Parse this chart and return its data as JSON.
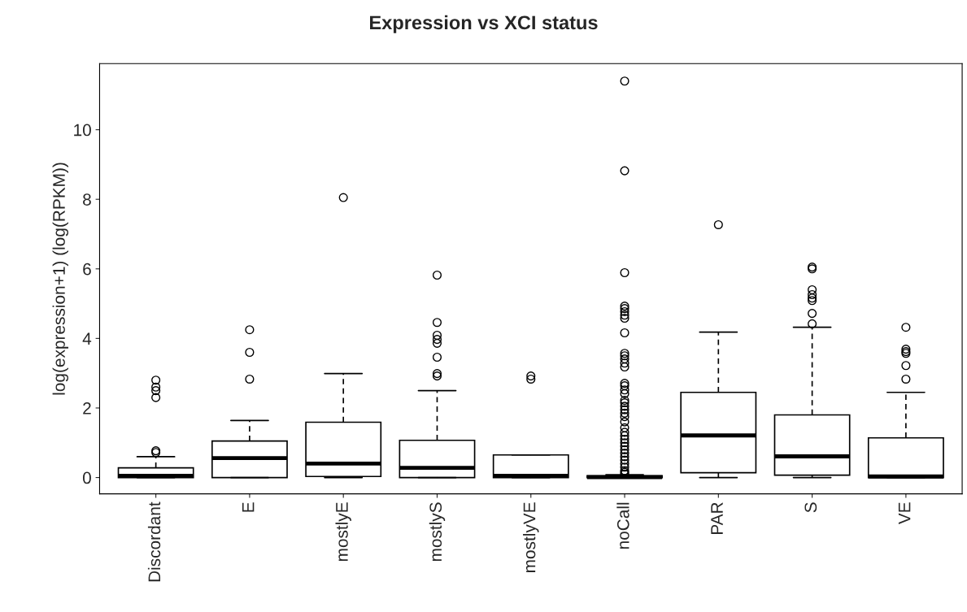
{
  "chart_data": {
    "type": "box",
    "title": "Expression vs XCI status",
    "ylabel": "log(expression+1) (log(RPKM))",
    "categories": [
      "Discordant",
      "E",
      "mostlyE",
      "mostlyS",
      "mostlyVE",
      "noCall",
      "PAR",
      "S",
      "VE"
    ],
    "ylim": [
      -0.47,
      11.9
    ],
    "yticks": [
      0,
      2,
      4,
      6,
      8,
      10
    ],
    "grid": false,
    "legend": false,
    "boxes": [
      {
        "low": 0,
        "q1": 0,
        "median": 0.05,
        "q3": 0.28,
        "high": 0.6,
        "outliers": [
          0.72,
          0.77,
          2.3,
          2.5,
          2.6,
          2.8
        ]
      },
      {
        "low": 0,
        "q1": 0,
        "median": 0.56,
        "q3": 1.05,
        "high": 1.64,
        "outliers": [
          2.83,
          3.6,
          4.25
        ]
      },
      {
        "low": 0,
        "q1": 0.03,
        "median": 0.4,
        "q3": 1.59,
        "high": 2.99,
        "outliers": [
          8.05
        ]
      },
      {
        "low": 0,
        "q1": 0,
        "median": 0.28,
        "q3": 1.07,
        "high": 2.5,
        "outliers": [
          2.92,
          2.99,
          3.46,
          3.86,
          3.97,
          4.09,
          4.46,
          5.82
        ]
      },
      {
        "low": 0,
        "q1": 0,
        "median": 0.05,
        "q3": 0.65,
        "high": 0.65,
        "outliers": [
          2.83,
          2.92
        ]
      },
      {
        "low": 0,
        "q1": 0,
        "median": 0.01,
        "q3": 0.05,
        "high": 0.08,
        "outliers": [
          0.1,
          0.15,
          0.2,
          0.3,
          0.4,
          0.5,
          0.6,
          0.7,
          0.8,
          0.9,
          1.0,
          1.1,
          1.2,
          1.3,
          1.43,
          1.6,
          1.75,
          1.85,
          1.95,
          2.05,
          2.15,
          2.22,
          2.41,
          2.52,
          2.64,
          2.71,
          3.18,
          3.29,
          3.41,
          3.5,
          3.57,
          4.16,
          4.58,
          4.67,
          4.77,
          4.86,
          4.93,
          5.89,
          8.82,
          11.4
        ]
      },
      {
        "low": 0,
        "q1": 0.14,
        "median": 1.21,
        "q3": 2.45,
        "high": 4.18,
        "outliers": [
          7.27
        ]
      },
      {
        "low": 0,
        "q1": 0.07,
        "median": 0.61,
        "q3": 1.8,
        "high": 4.32,
        "outliers": [
          4.42,
          4.72,
          5.09,
          5.16,
          5.26,
          5.4,
          6.0,
          6.05
        ]
      },
      {
        "low": 0,
        "q1": 0,
        "median": 0.03,
        "q3": 1.14,
        "high": 2.45,
        "outliers": [
          2.83,
          3.22,
          3.57,
          3.62,
          3.69,
          4.32
        ]
      }
    ]
  }
}
